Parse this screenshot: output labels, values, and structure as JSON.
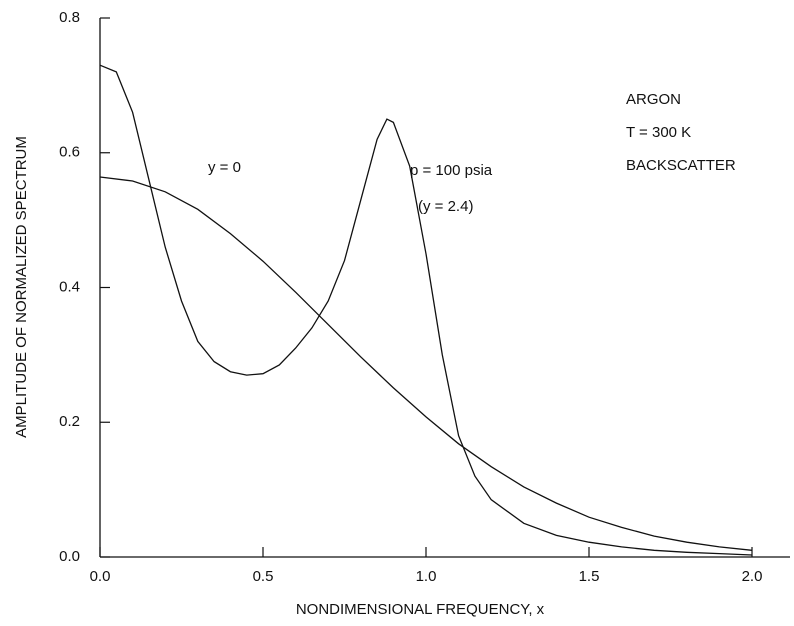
{
  "chart_data": {
    "type": "line",
    "xlabel": "NONDIMENSIONAL FREQUENCY, x",
    "ylabel": "AMPLITUDE OF NORMALIZED SPECTRUM",
    "xlim": [
      0,
      2.0
    ],
    "ylim": [
      0,
      0.8
    ],
    "xticks": [
      {
        "value": 0,
        "label": "0.0"
      },
      {
        "value": 0.5,
        "label": "0.5"
      },
      {
        "value": 1,
        "label": "1.0"
      },
      {
        "value": 1.5,
        "label": "1.5"
      },
      {
        "value": 2,
        "label": "2.0"
      }
    ],
    "yticks": [
      {
        "value": 0,
        "label": "0.0"
      },
      {
        "value": 0.2,
        "label": "0.2"
      },
      {
        "value": 0.4,
        "label": "0.4"
      },
      {
        "value": 0.6,
        "label": "0.6"
      },
      {
        "value": 0.8,
        "label": "0.8"
      }
    ],
    "series": [
      {
        "name": "y = 0",
        "color": "#111111",
        "x": [
          0,
          0.1,
          0.2,
          0.3,
          0.4,
          0.5,
          0.6,
          0.7,
          0.8,
          0.9,
          1.0,
          1.1,
          1.2,
          1.3,
          1.4,
          1.5,
          1.6,
          1.7,
          1.8,
          1.9,
          2.0
        ],
        "values": [
          0.564,
          0.558,
          0.542,
          0.516,
          0.48,
          0.439,
          0.393,
          0.345,
          0.297,
          0.251,
          0.208,
          0.168,
          0.134,
          0.104,
          0.08,
          0.059,
          0.044,
          0.031,
          0.022,
          0.015,
          0.01
        ]
      },
      {
        "name": "p = 100 psia",
        "color": "#111111",
        "x": [
          0,
          0.05,
          0.1,
          0.15,
          0.2,
          0.25,
          0.3,
          0.35,
          0.4,
          0.45,
          0.5,
          0.55,
          0.6,
          0.65,
          0.7,
          0.75,
          0.8,
          0.85,
          0.88,
          0.9,
          0.95,
          1.0,
          1.05,
          1.1,
          1.15,
          1.2,
          1.3,
          1.4,
          1.5,
          1.6,
          1.7,
          1.8,
          1.9,
          2.0
        ],
        "values": [
          0.73,
          0.72,
          0.66,
          0.56,
          0.46,
          0.38,
          0.32,
          0.29,
          0.275,
          0.27,
          0.272,
          0.285,
          0.31,
          0.34,
          0.38,
          0.44,
          0.53,
          0.62,
          0.65,
          0.645,
          0.58,
          0.45,
          0.3,
          0.18,
          0.12,
          0.085,
          0.05,
          0.032,
          0.022,
          0.015,
          0.01,
          0.007,
          0.005,
          0.003
        ]
      }
    ],
    "annotations": [
      "y = 0",
      "p = 100 psia",
      "(y = 2.4)",
      "ARGON",
      "T = 300 K",
      "BACKSCATTER"
    ]
  }
}
